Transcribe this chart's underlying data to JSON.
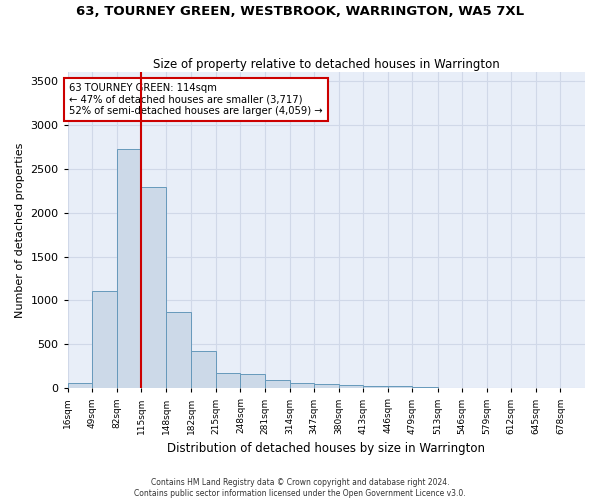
{
  "title": "63, TOURNEY GREEN, WESTBROOK, WARRINGTON, WA5 7XL",
  "subtitle": "Size of property relative to detached houses in Warrington",
  "xlabel": "Distribution of detached houses by size in Warrington",
  "ylabel": "Number of detached properties",
  "footer_line1": "Contains HM Land Registry data © Crown copyright and database right 2024.",
  "footer_line2": "Contains public sector information licensed under the Open Government Licence v3.0.",
  "bar_color": "#ccd9e8",
  "bar_edge_color": "#6699bb",
  "grid_color": "#d0d8e8",
  "background_color": "#e8eef8",
  "annotation_text_line1": "63 TOURNEY GREEN: 114sqm",
  "annotation_text_line2": "← 47% of detached houses are smaller (3,717)",
  "annotation_text_line3": "52% of semi-detached houses are larger (4,059) →",
  "vline_color": "#cc0000",
  "vline_x": 114,
  "bin_edges": [
    16,
    49,
    82,
    115,
    148,
    182,
    215,
    248,
    281,
    314,
    347,
    380,
    413,
    446,
    479,
    513,
    546,
    579,
    612,
    645,
    678
  ],
  "bin_labels": [
    "16sqm",
    "49sqm",
    "82sqm",
    "115sqm",
    "148sqm",
    "182sqm",
    "215sqm",
    "248sqm",
    "281sqm",
    "314sqm",
    "347sqm",
    "380sqm",
    "413sqm",
    "446sqm",
    "479sqm",
    "513sqm",
    "546sqm",
    "579sqm",
    "612sqm",
    "645sqm",
    "678sqm"
  ],
  "bar_heights": [
    55,
    1110,
    2720,
    2290,
    870,
    425,
    170,
    160,
    90,
    65,
    50,
    38,
    28,
    22,
    10,
    8,
    5,
    3,
    2,
    1
  ],
  "ylim": [
    0,
    3600
  ],
  "yticks": [
    0,
    500,
    1000,
    1500,
    2000,
    2500,
    3000,
    3500
  ]
}
